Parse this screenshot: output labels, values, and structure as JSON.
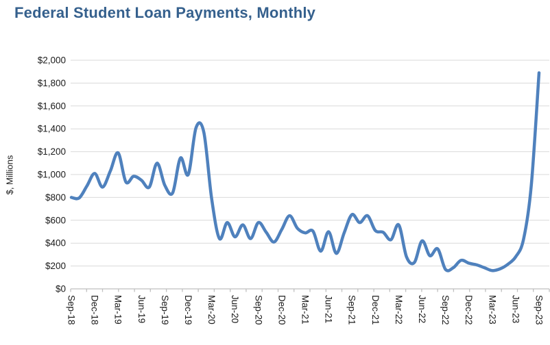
{
  "title": "Federal Student Loan Payments, Monthly",
  "chart_data": {
    "type": "line",
    "title": "Federal Student Loan Payments, Monthly",
    "xlabel": "",
    "ylabel": "$, Millions",
    "ylim": [
      0,
      2000
    ],
    "y_tick_step": 200,
    "y_tick_prefix": "$",
    "x_label_interval_months": 3,
    "grid": "horizontal",
    "legend": "none",
    "line_color": "#4f81bd",
    "smoothed": true,
    "categories": [
      "Sep-18",
      "Oct-18",
      "Nov-18",
      "Dec-18",
      "Jan-19",
      "Feb-19",
      "Mar-19",
      "Apr-19",
      "May-19",
      "Jun-19",
      "Jul-19",
      "Aug-19",
      "Sep-19",
      "Oct-19",
      "Nov-19",
      "Dec-19",
      "Jan-20",
      "Feb-20",
      "Mar-20",
      "Apr-20",
      "May-20",
      "Jun-20",
      "Jul-20",
      "Aug-20",
      "Sep-20",
      "Oct-20",
      "Nov-20",
      "Dec-20",
      "Jan-21",
      "Feb-21",
      "Mar-21",
      "Apr-21",
      "May-21",
      "Jun-21",
      "Jul-21",
      "Aug-21",
      "Sep-21",
      "Oct-21",
      "Nov-21",
      "Dec-21",
      "Jan-22",
      "Feb-22",
      "Mar-22",
      "Apr-22",
      "May-22",
      "Jun-22",
      "Jul-22",
      "Aug-22",
      "Sep-22",
      "Oct-22",
      "Nov-22",
      "Dec-22",
      "Jan-23",
      "Feb-23",
      "Mar-23",
      "Apr-23",
      "May-23",
      "Jun-23",
      "Jul-23",
      "Aug-23",
      "Sep-23"
    ],
    "x_tick_labels": [
      "Sep-18",
      "Dec-18",
      "Mar-19",
      "Jun-19",
      "Sep-19",
      "Dec-19",
      "Mar-20",
      "Jun-20",
      "Sep-20",
      "Dec-20",
      "Mar-21",
      "Jun-21",
      "Sep-21",
      "Dec-21",
      "Mar-22",
      "Jun-22",
      "Sep-22",
      "Dec-22",
      "Mar-23",
      "Jun-23",
      "Sep-23"
    ],
    "y_tick_labels": [
      "$0",
      "$200",
      "$400",
      "$600",
      "$800",
      "$1,000",
      "$1,200",
      "$1,400",
      "$1,600",
      "$1,800",
      "$2,000"
    ],
    "series": [
      {
        "name": "Federal student loan payments ($ millions)",
        "values": [
          800,
          795,
          900,
          1010,
          890,
          1030,
          1190,
          935,
          985,
          950,
          890,
          1100,
          905,
          840,
          1145,
          1000,
          1410,
          1370,
          790,
          440,
          580,
          455,
          560,
          440,
          580,
          495,
          410,
          520,
          640,
          530,
          490,
          505,
          330,
          500,
          310,
          490,
          650,
          580,
          640,
          510,
          495,
          430,
          560,
          280,
          230,
          420,
          290,
          350,
          170,
          185,
          250,
          225,
          210,
          185,
          160,
          175,
          215,
          280,
          430,
          900,
          1890
        ]
      }
    ]
  },
  "colors": {
    "title": "#35608D",
    "line": "#4f81bd",
    "gridline": "#d9d9d9",
    "axis": "#bfbfbf",
    "tick_text": "#1a1a1a"
  }
}
